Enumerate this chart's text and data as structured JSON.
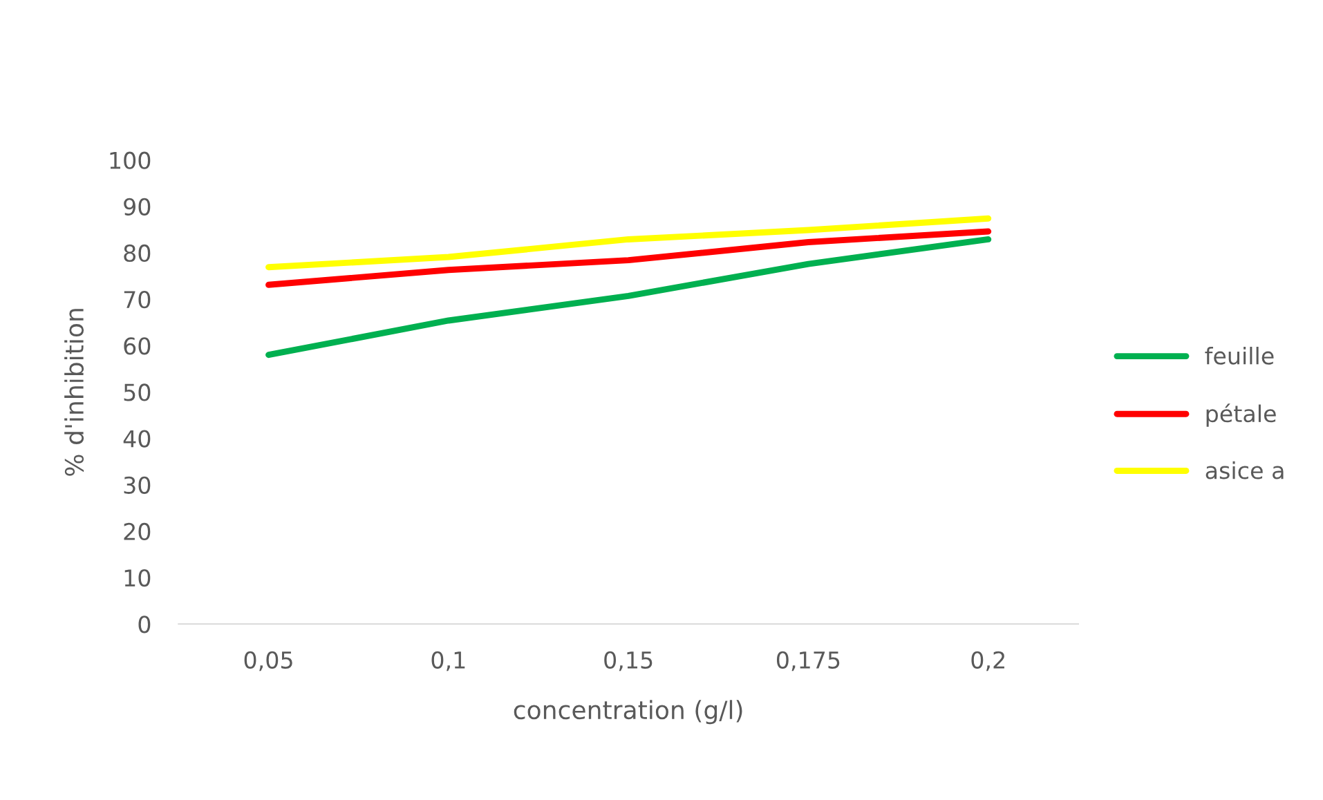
{
  "chart_data": {
    "type": "line",
    "xlabel": "concentration (g/l)",
    "ylabel": "% d'inhibition",
    "categories": [
      "0,05",
      "0,1",
      "0,15",
      "0,175",
      "0,2"
    ],
    "series": [
      {
        "name": "feuille",
        "color": "#00b050",
        "values": [
          58,
          65.4,
          70.7,
          77.6,
          82.9
        ]
      },
      {
        "name": "pétale",
        "color": "#ff0000",
        "values": [
          73.1,
          76.3,
          78.4,
          82.3,
          84.6
        ]
      },
      {
        "name": "asice a",
        "color": "#ffff00",
        "values": [
          76.9,
          79.1,
          82.9,
          84.9,
          87.4
        ]
      }
    ],
    "ylim": [
      0,
      100
    ],
    "yticks": [
      0,
      10,
      20,
      30,
      40,
      50,
      60,
      70,
      80,
      90,
      100
    ],
    "grid": false,
    "legend": "right",
    "marker": "none",
    "line_style": "solid"
  }
}
